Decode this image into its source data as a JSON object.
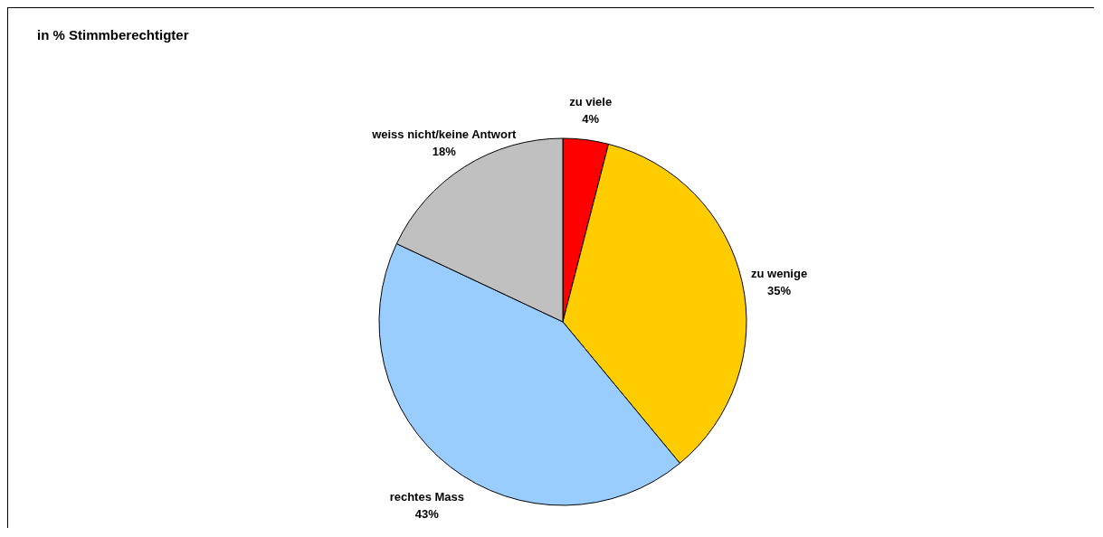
{
  "chart_data": {
    "type": "pie",
    "title": "in % Stimmberechtigter",
    "categories": [
      "zu viele",
      "zu wenige",
      "rechtes Mass",
      "weiss nicht/keine Antwort"
    ],
    "values": [
      4,
      35,
      43,
      18
    ],
    "colors": [
      "#ff0000",
      "#ffcc00",
      "#99ccff",
      "#c0c0c0"
    ],
    "value_labels": [
      "4%",
      "35%",
      "43%",
      "18%"
    ],
    "legend": false
  }
}
